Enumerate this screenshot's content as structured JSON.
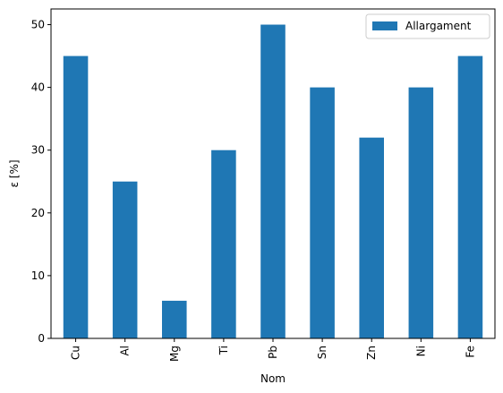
{
  "chart_data": {
    "type": "bar",
    "categories": [
      "Cu",
      "Al",
      "Mg",
      "Ti",
      "Pb",
      "Sn",
      "Zn",
      "Ni",
      "Fe"
    ],
    "series": [
      {
        "name": "Allargament",
        "values": [
          45,
          25,
          6,
          30,
          50,
          40,
          32,
          40,
          45
        ],
        "color": "#1f77b4"
      }
    ],
    "xlabel": "Nom",
    "ylabel": "ε  [%]",
    "ylim": [
      0,
      52.5
    ],
    "yticks": [
      0,
      10,
      20,
      30,
      40,
      50
    ],
    "grid": false,
    "legend_position": "top-right"
  }
}
